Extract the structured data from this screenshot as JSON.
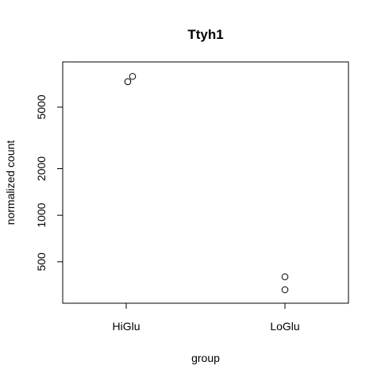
{
  "chart_data": {
    "type": "scatter",
    "title": "Ttyh1",
    "xlabel": "group",
    "ylabel": "normalized count",
    "categories": [
      "HiGlu",
      "LoGlu"
    ],
    "y_scale": "log",
    "ylim": [
      270,
      9800
    ],
    "y_ticks": [
      500,
      1000,
      2000,
      5000
    ],
    "y_tick_labels": [
      "500",
      "1000",
      "2000",
      "5000"
    ],
    "points": [
      {
        "group": "HiGlu",
        "value": 7900,
        "jitter": 0.04
      },
      {
        "group": "HiGlu",
        "value": 7300,
        "jitter": 0.01
      },
      {
        "group": "LoGlu",
        "value": 400,
        "jitter": 0.0
      },
      {
        "group": "LoGlu",
        "value": 330,
        "jitter": 0.0
      }
    ],
    "grid": false,
    "legend": "none"
  }
}
